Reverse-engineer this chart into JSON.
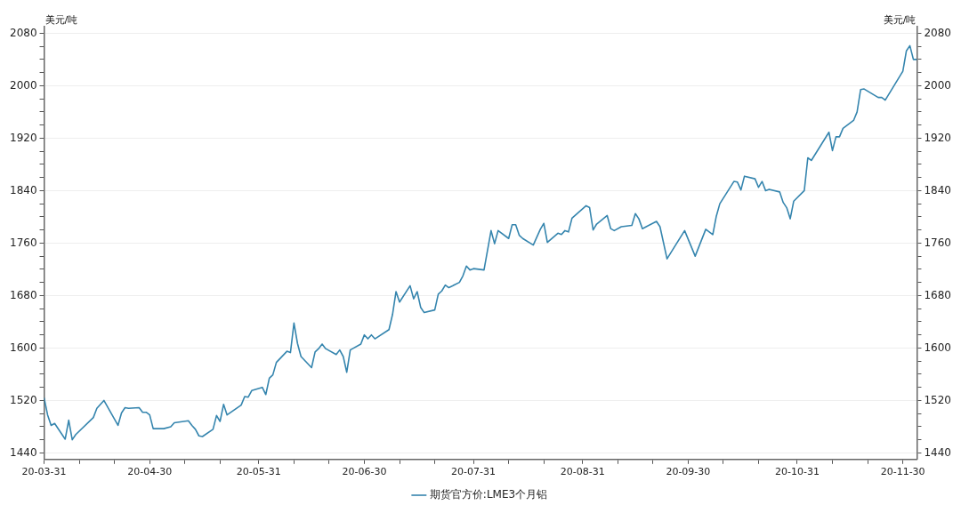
{
  "chart_data": {
    "type": "line",
    "ylabel": "美元/吨",
    "y2label": "美元/吨",
    "x": [
      "--03-31",
      "--04-01",
      "--04-02",
      "--04-03",
      "--04-06",
      "--04-07",
      "--04-08",
      "--04-09",
      "--04-14",
      "--04-15",
      "--04-17",
      "--04-21",
      "--04-22",
      "--04-23",
      "--04-24",
      "--04-27",
      "--04-28",
      "--04-29",
      "--04-30",
      "--05-01",
      "--05-04",
      "--05-06",
      "--05-07",
      "--05-11",
      "--05-12",
      "--05-13",
      "--05-14",
      "--05-15",
      "--05-18",
      "--05-19",
      "--05-20",
      "--05-21",
      "--05-22",
      "--05-26",
      "--05-27",
      "--05-28",
      "--05-29",
      "--06-01",
      "--06-02",
      "--06-03",
      "--06-04",
      "--06-05",
      "--06-08",
      "--06-09",
      "--06-10",
      "--06-11",
      "--06-12",
      "--06-15",
      "--06-16",
      "--06-17",
      "--06-18",
      "--06-19",
      "--06-22",
      "--06-23",
      "--06-24",
      "--06-25",
      "--06-26",
      "--06-29",
      "--06-30",
      "--07-01",
      "--07-02",
      "--07-03",
      "--07-07",
      "--07-08",
      "--07-09",
      "--07-10",
      "--07-13",
      "--07-14",
      "--07-15",
      "--07-16",
      "--07-17",
      "--07-20",
      "--07-21",
      "--07-22",
      "--07-23",
      "--07-24",
      "--07-27",
      "--07-28",
      "--07-29",
      "--07-30",
      "--07-31",
      "--08-03",
      "--08-05",
      "--08-06",
      "--08-07",
      "--08-10",
      "--08-11",
      "--08-12",
      "--08-13",
      "--08-14",
      "--08-17",
      "--08-19",
      "--08-20",
      "--08-21",
      "--08-24",
      "--08-25",
      "--08-26",
      "--08-27",
      "--08-28",
      "--09-01",
      "--09-02",
      "--09-03",
      "--09-04",
      "--09-07",
      "--09-08",
      "--09-09",
      "--09-11",
      "--09-14",
      "--09-15",
      "--09-16",
      "--09-17",
      "--09-21",
      "--09-22",
      "--09-24",
      "--09-29",
      "--10-02",
      "--10-05",
      "--10-07",
      "--10-08",
      "--10-09",
      "--10-13",
      "--10-14",
      "--10-15",
      "--10-16",
      "--10-19",
      "--10-20",
      "--10-21",
      "--10-22",
      "--10-23",
      "--10-26",
      "--10-27",
      "--10-28",
      "--10-29",
      "--10-30",
      "--11-02",
      "--11-03",
      "--11-04",
      "--11-09",
      "--11-10",
      "--11-11",
      "--11-12",
      "--11-13",
      "--11-16",
      "--11-17",
      "--11-18",
      "--11-19",
      "--11-23",
      "--11-24",
      "--11-25",
      "--11-30",
      "--12-01",
      "--12-02",
      "--12-03",
      "--12-04"
    ],
    "series": [
      {
        "name": "期货官方价:LME3个月铝",
        "color": "#3585ae",
        "values": [
          1524,
          1498,
          1482,
          1485,
          1461,
          1490,
          1460,
          1468,
          1494,
          1508,
          1520,
          1482,
          1501,
          1509,
          1508,
          1509,
          1502,
          1502,
          1498,
          1477,
          1477,
          1480,
          1486,
          1489,
          1482,
          1476,
          1466,
          1465,
          1476,
          1497,
          1488,
          1514,
          1498,
          1513,
          1526,
          1525,
          1535,
          1540,
          1529,
          1554,
          1559,
          1578,
          1595,
          1593,
          1638,
          1607,
          1587,
          1570,
          1594,
          1599,
          1606,
          1599,
          1590,
          1597,
          1587,
          1563,
          1597,
          1606,
          1620,
          1614,
          1620,
          1614,
          1628,
          1651,
          1686,
          1670,
          1695,
          1675,
          1686,
          1662,
          1654,
          1658,
          1682,
          1687,
          1696,
          1692,
          1700,
          1710,
          1725,
          1719,
          1721,
          1719,
          1779,
          1759,
          1779,
          1767,
          1788,
          1788,
          1772,
          1767,
          1757,
          1781,
          1790,
          1761,
          1775,
          1773,
          1779,
          1777,
          1798,
          1817,
          1814,
          1780,
          1789,
          1802,
          1782,
          1779,
          1785,
          1787,
          1805,
          1797,
          1782,
          1793,
          1785,
          1736,
          1779,
          1740,
          1781,
          1773,
          1801,
          1820,
          1854,
          1853,
          1841,
          1862,
          1858,
          1845,
          1854,
          1840,
          1842,
          1838,
          1822,
          1814,
          1797,
          1824,
          1840,
          1890,
          1886,
          1929,
          1901,
          1922,
          1922,
          1935,
          1947,
          1960,
          1994,
          1995,
          1982,
          1982,
          1978,
          2022,
          2053,
          2061,
          2040,
          2040
        ]
      }
    ],
    "xlim": [
      "--03-31",
      "--12-04"
    ],
    "xticks": [
      {
        "value": "--03-31",
        "label": "20-03-31"
      },
      {
        "value": "--04-10",
        "label": null
      },
      {
        "value": "--04-20",
        "label": null
      },
      {
        "value": "--04-30",
        "label": "20-04-30"
      },
      {
        "value": "--05-10",
        "label": null
      },
      {
        "value": "--05-20",
        "label": null
      },
      {
        "value": "--05-31",
        "label": "20-05-31"
      },
      {
        "value": "--06-10",
        "label": null
      },
      {
        "value": "--06-20",
        "label": null
      },
      {
        "value": "--06-30",
        "label": "20-06-30"
      },
      {
        "value": "--07-10",
        "label": null
      },
      {
        "value": "--07-20",
        "label": null
      },
      {
        "value": "--07-31",
        "label": "20-07-31"
      },
      {
        "value": "--08-10",
        "label": null
      },
      {
        "value": "--08-20",
        "label": null
      },
      {
        "value": "--08-31",
        "label": "20-08-31"
      },
      {
        "value": "--09-10",
        "label": null
      },
      {
        "value": "--09-20",
        "label": null
      },
      {
        "value": "--09-30",
        "label": "20-09-30"
      },
      {
        "value": "--10-10",
        "label": null
      },
      {
        "value": "--10-20",
        "label": null
      },
      {
        "value": "--10-31",
        "label": "20-10-31"
      },
      {
        "value": "--11-10",
        "label": null
      },
      {
        "value": "--11-20",
        "label": null
      },
      {
        "value": "--11-30",
        "label": "20-11-30"
      }
    ],
    "ylim": [
      1430,
      2090
    ],
    "yticks": [
      1440,
      {
        "value": 1460,
        "label": null
      },
      {
        "value": 1480,
        "label": null
      },
      {
        "value": 1500,
        "label": null
      },
      1520,
      {
        "value": 1540,
        "label": null
      },
      {
        "value": 1560,
        "label": null
      },
      {
        "value": 1580,
        "label": null
      },
      1600,
      {
        "value": 1620,
        "label": null
      },
      {
        "value": 1640,
        "label": null
      },
      {
        "value": 1660,
        "label": null
      },
      1680,
      {
        "value": 1700,
        "label": null
      },
      {
        "value": 1720,
        "label": null
      },
      {
        "value": 1740,
        "label": null
      },
      1760,
      {
        "value": 1780,
        "label": null
      },
      {
        "value": 1800,
        "label": null
      },
      {
        "value": 1820,
        "label": null
      },
      1840,
      {
        "value": 1860,
        "label": null
      },
      {
        "value": 1880,
        "label": null
      },
      {
        "value": 1900,
        "label": null
      },
      1920,
      {
        "value": 1940,
        "label": null
      },
      {
        "value": 1960,
        "label": null
      },
      {
        "value": 1980,
        "label": null
      },
      2000,
      {
        "value": 2020,
        "label": null
      },
      {
        "value": 2040,
        "label": null
      },
      {
        "value": 2060,
        "label": null
      },
      2080
    ],
    "y2lim": [
      1430,
      2090
    ],
    "y2ticks": [
      1440,
      {
        "value": 1460,
        "label": null
      },
      {
        "value": 1480,
        "label": null
      },
      {
        "value": 1500,
        "label": null
      },
      1520,
      {
        "value": 1540,
        "label": null
      },
      {
        "value": 1560,
        "label": null
      },
      {
        "value": 1580,
        "label": null
      },
      1600,
      {
        "value": 1620,
        "label": null
      },
      {
        "value": 1640,
        "label": null
      },
      {
        "value": 1660,
        "label": null
      },
      1680,
      {
        "value": 1700,
        "label": null
      },
      {
        "value": 1720,
        "label": null
      },
      {
        "value": 1740,
        "label": null
      },
      1760,
      {
        "value": 1780,
        "label": null
      },
      {
        "value": 1800,
        "label": null
      },
      {
        "value": 1820,
        "label": null
      },
      1840,
      {
        "value": 1860,
        "label": null
      },
      {
        "value": 1880,
        "label": null
      },
      {
        "value": 1900,
        "label": null
      },
      1920,
      {
        "value": 1940,
        "label": null
      },
      {
        "value": 1960,
        "label": null
      },
      {
        "value": 1980,
        "label": null
      },
      2000,
      {
        "value": 2020,
        "label": null
      },
      {
        "value": 2040,
        "label": null
      },
      {
        "value": 2060,
        "label": null
      },
      2080
    ],
    "grid": "y",
    "legend": "bottom",
    "marker": "none",
    "line_style": "solid"
  }
}
